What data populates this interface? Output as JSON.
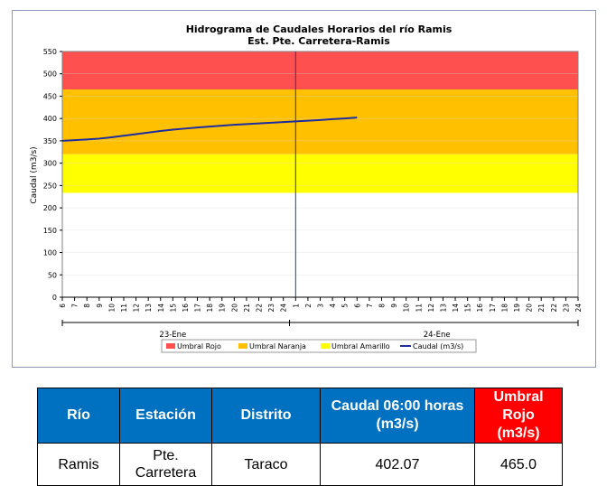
{
  "chart_data": {
    "type": "line",
    "title": "Hidrograma de Caudales Horarios del río Ramis",
    "subtitle": "Est. Pte. Carretera-Ramis",
    "ylabel": "Caudal  (m3/s)",
    "ylim": [
      0,
      550
    ],
    "yticks": [
      0,
      50,
      100,
      150,
      200,
      250,
      300,
      350,
      400,
      450,
      500,
      550
    ],
    "xticks": [
      "6",
      "7",
      "8",
      "9",
      "10",
      "11",
      "12",
      "13",
      "14",
      "15",
      "16",
      "17",
      "18",
      "19",
      "20",
      "21",
      "22",
      "23",
      "24",
      "1",
      "2",
      "3",
      "4",
      "5",
      "6",
      "7",
      "8",
      "9",
      "10",
      "11",
      "12",
      "13",
      "14",
      "15",
      "16",
      "17",
      "18",
      "19",
      "20",
      "21",
      "22",
      "23",
      "24"
    ],
    "day_labels": [
      {
        "label": "23-Ene",
        "from": 0,
        "to": 18
      },
      {
        "label": "24-Ene",
        "from": 19,
        "to": 42
      }
    ],
    "bands": [
      {
        "name": "Umbral Rojo",
        "from": 465,
        "to": 550,
        "color": "#ff5050"
      },
      {
        "name": "Umbral Naranja",
        "from": 320,
        "to": 465,
        "color": "#ffc000"
      },
      {
        "name": "Umbral Amarillo",
        "from": 232,
        "to": 320,
        "color": "#ffff00"
      }
    ],
    "current_time_index": 19,
    "series": [
      {
        "name": "Caudal (m3/s)",
        "color": "#1f2d9e",
        "x": [
          0,
          1,
          2,
          3,
          4,
          5,
          6,
          7,
          8,
          9,
          10,
          11,
          12,
          13,
          14,
          15,
          16,
          17,
          18,
          19,
          20,
          21,
          22,
          23,
          24
        ],
        "values": [
          350,
          351.5,
          353,
          355,
          358,
          361.5,
          365,
          368.5,
          372,
          375,
          377.5,
          380,
          382,
          384,
          386,
          387.5,
          389,
          390.5,
          392,
          393.5,
          395,
          396.5,
          398.5,
          400,
          402.07
        ]
      }
    ],
    "legend": {
      "position": "bottom"
    }
  },
  "table": {
    "headers": {
      "rio": "Río",
      "estacion": "Estación",
      "distrito": "Distrito",
      "caudal_line1": "Caudal  06:00 horas",
      "caudal_line2": "(m3/s)",
      "umbral_line1": "Umbral Rojo",
      "umbral_line2": "(m3/s)"
    },
    "row": {
      "rio": "Ramis",
      "estacion_line1": "Pte.",
      "estacion_line2": "Carretera",
      "distrito": "Taraco",
      "caudal": "402.07",
      "umbral": "465.0"
    }
  }
}
